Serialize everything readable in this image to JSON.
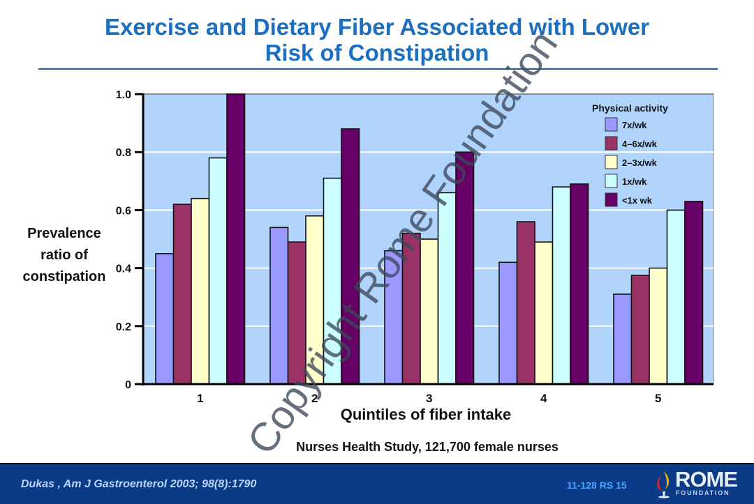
{
  "slide": {
    "title_line1": "Exercise and Dietary Fiber Associated with Lower",
    "title_line2": "Risk of Constipation",
    "note": "Nurses Health Study, 121,700 female nurses",
    "watermark": "Copyright Rome Foundation",
    "footer": {
      "citation": "Dukas , Am J Gastroenterol 2003; 98(8):1790",
      "slide_code": "11-128   RS 15",
      "logo_text": "ROME",
      "logo_subtext": "FOUNDATION"
    }
  },
  "chart_data": {
    "type": "bar",
    "title": "Exercise and Dietary Fiber Associated with Lower Risk of Constipation",
    "xlabel": "Quintiles of fiber intake",
    "ylabel_lines": [
      "Prevalence",
      "ratio of",
      "constipation"
    ],
    "ylabel": "Prevalence ratio of constipation",
    "categories": [
      "1",
      "2",
      "3",
      "4",
      "5"
    ],
    "ylim": [
      0,
      1.0
    ],
    "yticks": [
      0,
      0.2,
      0.4,
      0.6,
      0.8,
      1.0
    ],
    "ytick_labels": [
      "0",
      "0.2",
      "0.4",
      "0.6",
      "0.8",
      "1.0"
    ],
    "grid": true,
    "legend_title": "Physical activity",
    "legend_position": "top-right",
    "series": [
      {
        "name": "7x/wk",
        "color": "#9999ff",
        "values": [
          0.45,
          0.54,
          0.46,
          0.42,
          0.31
        ]
      },
      {
        "name": "4–6x/wk",
        "color": "#993366",
        "values": [
          0.62,
          0.49,
          0.52,
          0.56,
          0.375
        ]
      },
      {
        "name": "2–3x/wk",
        "color": "#ffffcc",
        "values": [
          0.64,
          0.58,
          0.5,
          0.49,
          0.4
        ]
      },
      {
        "name": "1x/wk",
        "color": "#ccffff",
        "values": [
          0.78,
          0.71,
          0.66,
          0.68,
          0.6
        ]
      },
      {
        "name": "<1x  wk",
        "color": "#660066",
        "values": [
          1.0,
          0.88,
          0.8,
          0.69,
          0.63
        ]
      }
    ],
    "colors": {
      "plot_background": "#b0d4fc",
      "gridline": "#ffffff",
      "title": "#1a6fc0",
      "footer_background": "#0b3a86"
    }
  }
}
